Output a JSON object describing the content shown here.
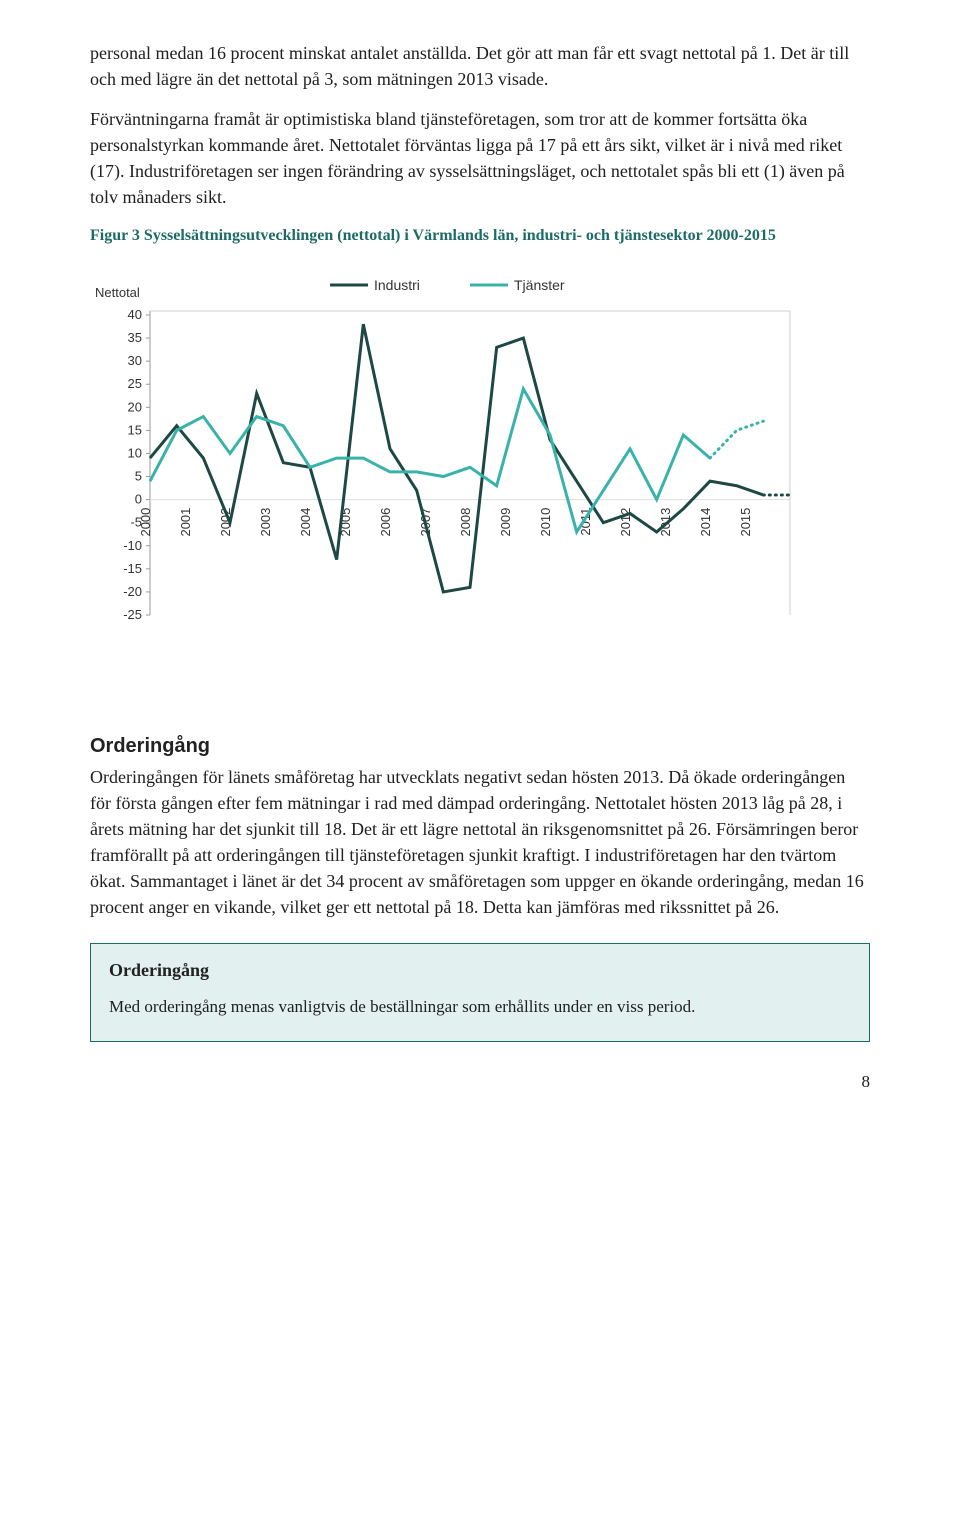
{
  "para1": "personal medan 16 procent minskat antalet anställda. Det gör att man får ett svagt nettotal på 1. Det är till och med lägre än det nettotal på 3, som mätningen 2013 visade.",
  "para2": "Förväntningarna framåt är optimistiska bland tjänsteföretagen, som tror att de kommer fortsätta öka personalstyrkan kommande året. Nettotalet förväntas ligga på 17 på ett års sikt, vilket är i nivå med riket (17). Industriföretagen ser ingen förändring av sysselsättningsläget, och nettotalet spås bli ett (1) även på tolv månaders sikt.",
  "figtitle": "Figur 3 Sysselsättningsutvecklingen (nettotal) i Värmlands län, industri- och tjänstesektor 2000-2015",
  "chart": {
    "type": "line",
    "y_axis_title": "Nettotal",
    "legend": [
      {
        "label": "Industri",
        "color": "#1d4843"
      },
      {
        "label": "Tjänster",
        "color": "#39b3aa"
      }
    ],
    "x_labels": [
      "2000",
      "2001",
      "2002",
      "2003",
      "2004",
      "2005",
      "2006",
      "2007",
      "2008",
      "2009",
      "2010",
      "2011",
      "2012",
      "2013",
      "2014",
      "2015"
    ],
    "y_ticks": [
      -25,
      -20,
      -15,
      -10,
      -5,
      0,
      5,
      10,
      15,
      20,
      25,
      30,
      35,
      40
    ],
    "ylim": [
      -25,
      40
    ],
    "series": [
      {
        "name": "Industri",
        "color": "#1d4843",
        "values": [
          9,
          16,
          9,
          -5,
          23,
          8,
          7,
          -13,
          38,
          11,
          2,
          -20,
          -19,
          33,
          35,
          13,
          4,
          -5,
          -3,
          -7,
          -2,
          4,
          3,
          1
        ]
      },
      {
        "name": "Tjänster",
        "color": "#39b3aa",
        "values": [
          4,
          15,
          18,
          10,
          18,
          16,
          7,
          9,
          9,
          6,
          6,
          5,
          7,
          3,
          24,
          14,
          -7,
          2,
          11,
          0,
          14,
          9
        ]
      },
      {
        "name": "Industri-forecast",
        "color": "#1d4843",
        "dotted": true,
        "start_index": 23,
        "values": [
          1,
          1
        ]
      },
      {
        "name": "Tjänster-forecast",
        "color": "#39b3aa",
        "dotted": true,
        "start_index": 21,
        "values": [
          9,
          15,
          17
        ]
      }
    ],
    "grid_color": "#d0d0d0",
    "background_color": "#ffffff",
    "label_fontsize": 13
  },
  "section_heading": "Orderingång",
  "para3": "Orderingången för länets småföretag har utvecklats negativt sedan hösten 2013. Då ökade orderingången för första gången efter fem mätningar i rad med dämpad orderingång. Nettotalet hösten 2013 låg på 28, i årets mätning har det sjunkit till 18. Det är ett lägre nettotal än riksgenomsnittet på 26. Försämringen beror framförallt på att orderingången till tjänsteföretagen sjunkit kraftigt. I industriföretagen har den tvärtom ökat. Sammantaget i länet är det 34 procent av småföretagen som uppger en ökande orderingång, medan 16 procent anger en vikande, vilket ger ett nettotal på 18. Detta kan jämföras med rikssnittet på 26.",
  "callout_title": "Orderingång",
  "callout_text": "Med orderingång menas vanligtvis de beställningar som erhållits under en viss period.",
  "page_number": "8"
}
